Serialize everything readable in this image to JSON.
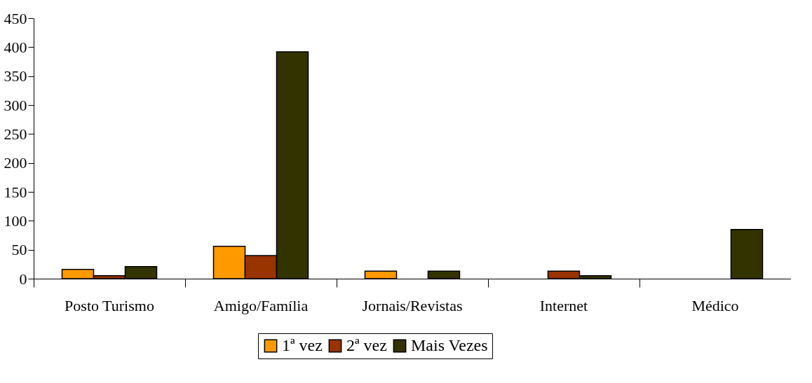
{
  "chart_data": {
    "type": "bar",
    "categories": [
      "Posto Turismo",
      "Amigo/Família",
      "Jornais/Revistas",
      "Internet",
      "Médico"
    ],
    "series": [
      {
        "name": "1ª vez",
        "color": "#ff9900",
        "values": [
          16,
          56,
          13,
          null,
          null
        ]
      },
      {
        "name": "2ª vez",
        "color": "#993300",
        "values": [
          5,
          40,
          null,
          13,
          null
        ]
      },
      {
        "name": "Mais Vezes",
        "color": "#333300",
        "values": [
          21,
          392,
          13,
          5,
          85
        ]
      }
    ],
    "ylim": [
      0,
      450
    ],
    "yticks": [
      0,
      50,
      100,
      150,
      200,
      250,
      300,
      350,
      400,
      450
    ],
    "grid": false,
    "legend": "bottom"
  }
}
